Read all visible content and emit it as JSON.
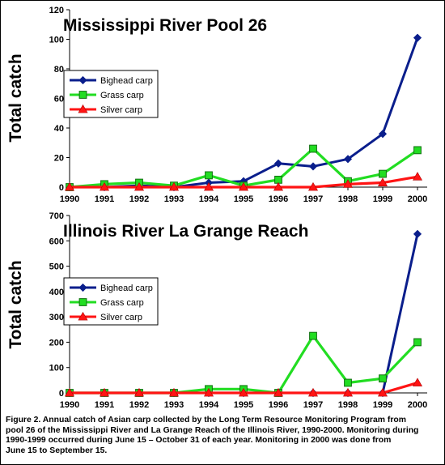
{
  "chart_data": [
    {
      "type": "line",
      "title": "Mississippi River Pool 26",
      "ylabel": "Total catch",
      "xlabel": "",
      "categories": [
        "1990",
        "1991",
        "1992",
        "1993",
        "1994",
        "1995",
        "1996",
        "1997",
        "1998",
        "1999",
        "2000"
      ],
      "ylim": [
        0,
        120
      ],
      "yticks": [
        0,
        20,
        40,
        60,
        80,
        100,
        120
      ],
      "grid": "none",
      "legend_position": "left",
      "series": [
        {
          "name": "Bighead carp",
          "color": "#0A1E8C",
          "marker": "diamond",
          "values": [
            0,
            0,
            1,
            0,
            3,
            4,
            16,
            14,
            19,
            36,
            101
          ]
        },
        {
          "name": "Grass carp",
          "color": "#22DD22",
          "marker": "square",
          "values": [
            0,
            2,
            3,
            1,
            8,
            1,
            5,
            26,
            4,
            9,
            25
          ]
        },
        {
          "name": "Silver carp",
          "color": "#FF1414",
          "marker": "triangle",
          "values": [
            0,
            0,
            0,
            0,
            0,
            0,
            0,
            0,
            2,
            3,
            7
          ]
        }
      ]
    },
    {
      "type": "line",
      "title": "Illinois River La Grange Reach",
      "ylabel": "Total catch",
      "xlabel": "",
      "categories": [
        "1990",
        "1991",
        "1992",
        "1993",
        "1994",
        "1995",
        "1996",
        "1997",
        "1998",
        "1999",
        "2000"
      ],
      "ylim": [
        0,
        700
      ],
      "yticks": [
        0,
        100,
        200,
        300,
        400,
        500,
        600,
        700
      ],
      "grid": "none",
      "legend_position": "left",
      "series": [
        {
          "name": "Bighead carp",
          "color": "#0A1E8C",
          "marker": "diamond",
          "values": [
            0,
            0,
            0,
            0,
            0,
            0,
            0,
            0,
            0,
            0,
            627
          ]
        },
        {
          "name": "Grass carp",
          "color": "#22DD22",
          "marker": "square",
          "values": [
            0,
            0,
            0,
            0,
            15,
            15,
            0,
            225,
            40,
            57,
            200
          ]
        },
        {
          "name": "Silver carp",
          "color": "#FF1414",
          "marker": "triangle",
          "values": [
            0,
            0,
            0,
            0,
            0,
            0,
            0,
            0,
            0,
            0,
            40
          ]
        }
      ]
    }
  ],
  "caption": {
    "lines": [
      "Figure 2.  Annual catch of Asian carp collected by the Long Term Resource Monitoring Program from",
      "pool 26 of the Mississippi River and La Grange Reach of the Illinois River, 1990-2000.  Monitoring during",
      "1990-1999 occurred during June 15 – October 31 of each year.  Monitoring in 2000 was done from",
      "June 15  to September 15."
    ]
  }
}
